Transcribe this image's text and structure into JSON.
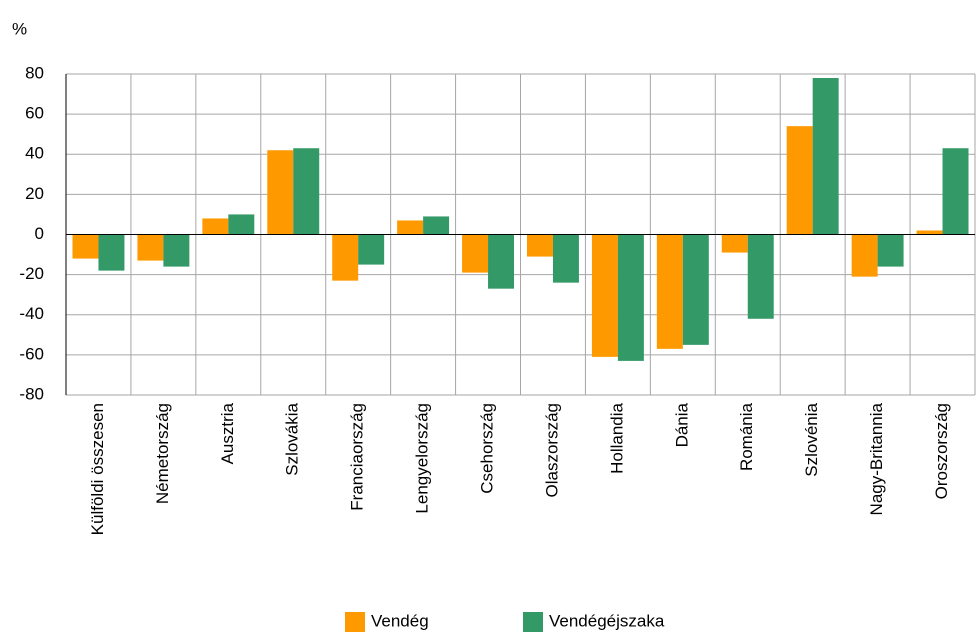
{
  "chart_data": {
    "type": "bar",
    "y_label": "%",
    "categories": [
      "Külföldi összesen",
      "Németország",
      "Ausztria",
      "Szlovákia",
      "Franciaország",
      "Lengyelország",
      "Csehország",
      "Olaszország",
      "Hollandia",
      "Dánia",
      "Románia",
      "Szlovénia",
      "Nagy-Britannia",
      "Oroszország"
    ],
    "series": [
      {
        "name": "Vendég",
        "color": "#ff9900",
        "values": [
          -12,
          -13,
          8,
          42,
          -23,
          7,
          -19,
          -11,
          -61,
          -57,
          -9,
          54,
          -21,
          2
        ]
      },
      {
        "name": "Vendégéjszaka",
        "color": "#339966",
        "values": [
          -18,
          -16,
          10,
          43,
          -15,
          9,
          -27,
          -24,
          -63,
          -55,
          -42,
          78,
          -16,
          43
        ]
      }
    ],
    "ylim": [
      -80,
      80
    ],
    "yticks": [
      -80,
      -60,
      -40,
      -20,
      0,
      20,
      40,
      60,
      80
    ],
    "grid": true,
    "legend": "bottom"
  }
}
